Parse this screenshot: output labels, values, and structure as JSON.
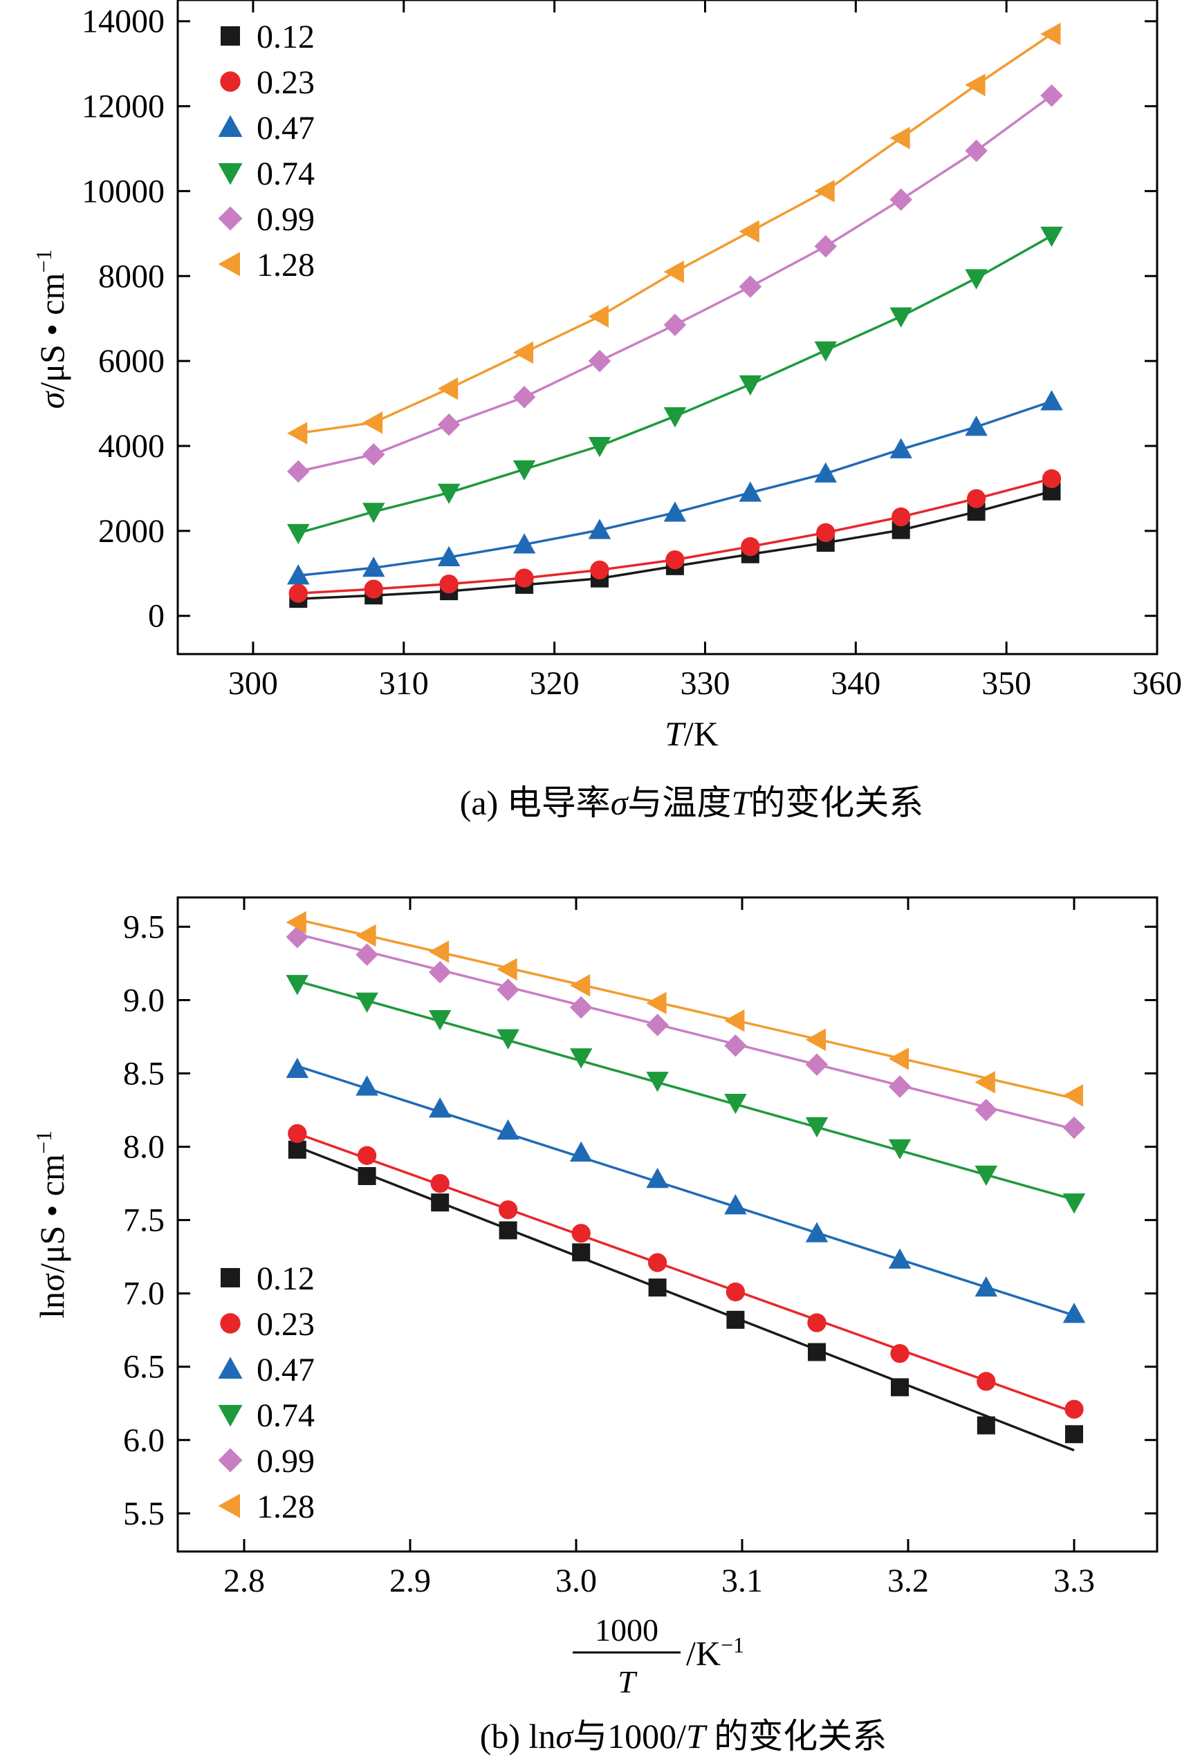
{
  "chart_data": [
    {
      "type": "line",
      "panel": "a",
      "title": "",
      "caption": {
        "prefix": "(a) 电导率",
        "sigma": "σ",
        "middle": "与温度",
        "T": "T",
        "suffix": "的变化关系"
      },
      "xlabel": {
        "var": "T",
        "unit": "/K"
      },
      "ylabel": {
        "var": "σ",
        "unit": "/μS • cm",
        "sup": "−1"
      },
      "xlim": [
        295,
        360
      ],
      "ylim": [
        -900,
        14500
      ],
      "xticks": [
        300,
        310,
        320,
        330,
        340,
        350,
        360
      ],
      "yticks": [
        0,
        2000,
        4000,
        6000,
        8000,
        10000,
        12000,
        14000
      ],
      "legend_position": "top-left",
      "x": [
        303,
        308,
        313,
        318,
        323,
        328,
        333,
        338,
        343,
        348,
        353
      ],
      "series": [
        {
          "name": "0.12",
          "marker": "square",
          "color": "#1a1a1a",
          "values": [
            400,
            480,
            580,
            730,
            880,
            1170,
            1450,
            1720,
            2020,
            2450,
            2930
          ]
        },
        {
          "name": "0.23",
          "marker": "circle",
          "color": "#e8262a",
          "values": [
            530,
            630,
            750,
            890,
            1080,
            1320,
            1630,
            1960,
            2330,
            2760,
            3230
          ]
        },
        {
          "name": "0.47",
          "marker": "triangle-up",
          "color": "#1f6ab5",
          "values": [
            950,
            1130,
            1380,
            1680,
            2020,
            2430,
            2900,
            3350,
            3920,
            4450,
            5050
          ]
        },
        {
          "name": "0.74",
          "marker": "triangle-down",
          "color": "#1d9a3c",
          "values": [
            1950,
            2450,
            2900,
            3450,
            4000,
            4700,
            5450,
            6250,
            7050,
            7950,
            8950
          ]
        },
        {
          "name": "0.99",
          "marker": "diamond",
          "color": "#c97ec3",
          "values": [
            3400,
            3800,
            4500,
            5150,
            6000,
            6850,
            7750,
            8700,
            9800,
            10950,
            12250
          ]
        },
        {
          "name": "1.28",
          "marker": "triangle-left",
          "color": "#f39b2f",
          "values": [
            4300,
            4550,
            5350,
            6200,
            7050,
            8100,
            9050,
            10000,
            11250,
            12500,
            13700
          ]
        }
      ]
    },
    {
      "type": "line",
      "panel": "b",
      "title": "",
      "caption": {
        "prefix": "(b) ln",
        "sigma": "σ",
        "middle": "与1000/",
        "T": "T",
        "suffix": " 的变化关系"
      },
      "xlabel": {
        "numerator": "1000",
        "denominator": "T",
        "unit": "/K",
        "sup": "−1"
      },
      "ylabel": {
        "var": "lnσ",
        "unit": "/μS • cm",
        "sup": "−1"
      },
      "xlim": [
        2.76,
        3.35
      ],
      "ylim": [
        5.24,
        9.7
      ],
      "xticks": [
        2.8,
        2.9,
        3.0,
        3.1,
        3.2,
        3.3
      ],
      "xtick_labels": [
        "2.8",
        "2.9",
        "3.0",
        "3.1",
        "3.2",
        "3.3"
      ],
      "yticks": [
        5.5,
        6.0,
        6.5,
        7.0,
        7.5,
        8.0,
        8.5,
        9.0,
        9.5
      ],
      "ytick_labels": [
        "5.5",
        "6.0",
        "6.5",
        "7.0",
        "7.5",
        "8.0",
        "8.5",
        "9.0",
        "9.5"
      ],
      "legend_position": "bottom-left",
      "x": [
        2.832,
        2.874,
        2.918,
        2.959,
        3.003,
        3.049,
        3.096,
        3.145,
        3.195,
        3.247,
        3.3
      ],
      "series": [
        {
          "name": "0.12",
          "marker": "square",
          "color": "#1a1a1a",
          "values": [
            7.98,
            7.8,
            7.62,
            7.43,
            7.28,
            7.04,
            6.82,
            6.6,
            6.36,
            6.1,
            6.04
          ],
          "fit": [
            8.0,
            5.93
          ]
        },
        {
          "name": "0.23",
          "marker": "circle",
          "color": "#e8262a",
          "values": [
            8.09,
            7.94,
            7.75,
            7.57,
            7.41,
            7.21,
            7.01,
            6.8,
            6.59,
            6.4,
            6.21
          ],
          "fit": [
            8.09,
            6.19
          ]
        },
        {
          "name": "0.47",
          "marker": "triangle-up",
          "color": "#1f6ab5",
          "values": [
            8.53,
            8.41,
            8.26,
            8.11,
            7.96,
            7.78,
            7.6,
            7.41,
            7.23,
            7.04,
            6.86
          ],
          "fit": [
            8.55,
            6.85
          ]
        },
        {
          "name": "0.74",
          "marker": "triangle-down",
          "color": "#1d9a3c",
          "values": [
            9.11,
            8.99,
            8.87,
            8.74,
            8.61,
            8.45,
            8.3,
            8.14,
            7.99,
            7.81,
            7.62
          ],
          "fit": [
            9.13,
            7.64
          ]
        },
        {
          "name": "0.99",
          "marker": "diamond",
          "color": "#c97ec3",
          "values": [
            9.43,
            9.31,
            9.19,
            9.07,
            8.95,
            8.83,
            8.69,
            8.56,
            8.41,
            8.25,
            8.13
          ],
          "fit": [
            9.45,
            8.12
          ]
        },
        {
          "name": "1.28",
          "marker": "triangle-left",
          "color": "#f39b2f",
          "values": [
            9.53,
            9.44,
            9.33,
            9.21,
            9.1,
            8.98,
            8.86,
            8.73,
            8.6,
            8.44,
            8.35
          ],
          "fit": [
            9.55,
            8.33
          ]
        }
      ]
    }
  ]
}
